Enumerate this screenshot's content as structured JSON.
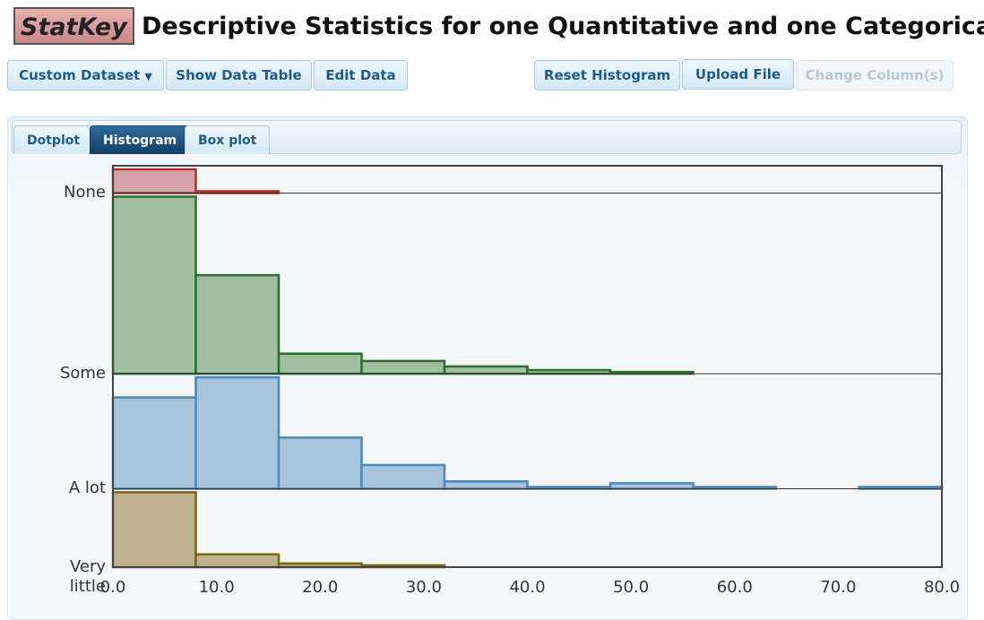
{
  "header": {
    "logo": "StatKey",
    "title": "Descriptive Statistics for one Quantitative and one Categorical Variable"
  },
  "toolbar": {
    "left": [
      "Custom Dataset",
      "Show Data Table",
      "Edit Data"
    ],
    "right": [
      "Reset Histogram",
      "Upload File",
      "Change Column(s)"
    ]
  },
  "tabs": [
    "Dotplot",
    "Histogram",
    "Box plot"
  ],
  "chart_data": {
    "type": "histogram",
    "bins": [
      0,
      8,
      16,
      24,
      32,
      40,
      48,
      56,
      64,
      72,
      80
    ],
    "series": [
      {
        "name": "None",
        "color": "#b03030",
        "fill": "#d4a3a7",
        "values": [
          13,
          1,
          0,
          0,
          0,
          0,
          0,
          0,
          0,
          0
        ]
      },
      {
        "name": "Some",
        "color": "#2e6e2e",
        "fill": "#9fbf9f",
        "values": [
          97,
          54,
          11,
          7,
          4,
          2,
          1,
          0,
          0,
          0
        ]
      },
      {
        "name": "A lot",
        "color": "#4a88bb",
        "fill": "#a9c4da",
        "values": [
          50,
          61,
          28,
          13,
          4,
          1,
          3,
          1,
          0,
          1
        ]
      },
      {
        "name": "Very little",
        "color": "#7a6510",
        "fill": "#bdb48f",
        "values": [
          41,
          7,
          2,
          1,
          0,
          0,
          0,
          0,
          0,
          0
        ]
      }
    ],
    "xlim": [
      0,
      80
    ],
    "xticks": [
      {
        "value": 0,
        "label": "0.0"
      },
      {
        "value": 10,
        "label": "10.0"
      },
      {
        "value": 20,
        "label": "20.0"
      },
      {
        "value": 30,
        "label": "30.0"
      },
      {
        "value": 40,
        "label": "40.0"
      },
      {
        "value": 50,
        "label": "50.0"
      },
      {
        "value": 60,
        "label": "60.0"
      },
      {
        "value": 70,
        "label": "70.0"
      },
      {
        "value": 80,
        "label": "80.0"
      }
    ]
  }
}
